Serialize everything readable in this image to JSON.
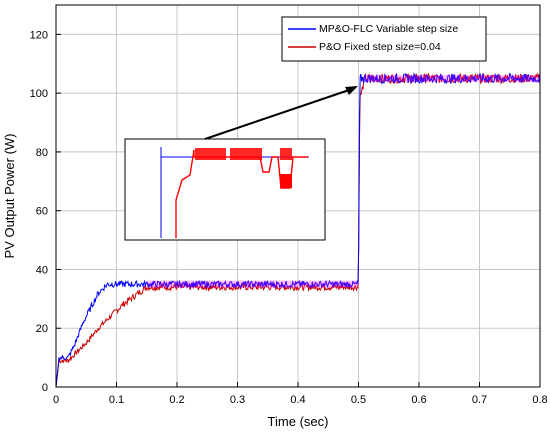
{
  "chart_data": {
    "type": "line",
    "title": "",
    "xlabel": "Time (sec)",
    "ylabel": "PV Output Power (W)",
    "xlim": [
      0,
      0.8
    ],
    "ylim": [
      0,
      130
    ],
    "xticks": [
      0,
      0.1,
      0.2,
      0.3,
      0.4,
      0.5,
      0.6,
      0.7,
      0.8
    ],
    "xtick_labels": [
      "0",
      "0.1",
      "0.2",
      "0.3",
      "0.4",
      "0.5",
      "0.6",
      "0.7",
      "0.8"
    ],
    "yticks": [
      0,
      20,
      40,
      60,
      80,
      100,
      120
    ],
    "ytick_labels": [
      "0",
      "20",
      "40",
      "60",
      "80",
      "100",
      "120"
    ],
    "grid": true,
    "legend_position": "top-right",
    "series": [
      {
        "name": "MP&O-FLC Variable step size",
        "color": "#0000ff",
        "x": [
          0,
          0.005,
          0.02,
          0.03,
          0.045,
          0.06,
          0.07,
          0.085,
          0.095,
          0.1,
          0.15,
          0.2,
          0.3,
          0.4,
          0.5,
          0.502,
          0.505,
          0.51,
          0.6,
          0.7,
          0.8
        ],
        "y": [
          0,
          10,
          10,
          14,
          22,
          28,
          32,
          35,
          35,
          35,
          35,
          35,
          35,
          35,
          35,
          105,
          105,
          105,
          105,
          105,
          105
        ]
      },
      {
        "name": "P&O Fixed step size=0.04",
        "color": "#cc0000",
        "x": [
          0,
          0.005,
          0.02,
          0.03,
          0.05,
          0.07,
          0.09,
          0.11,
          0.13,
          0.15,
          0.2,
          0.3,
          0.4,
          0.5,
          0.502,
          0.505,
          0.51,
          0.6,
          0.7,
          0.8
        ],
        "y": [
          0,
          9,
          9,
          11,
          15,
          20,
          24,
          28,
          31,
          34,
          34,
          34,
          34,
          34,
          99,
          100,
          105,
          105,
          105,
          105
        ]
      }
    ],
    "inset": {
      "series_colors": [
        "#0000ff",
        "#ff0000"
      ]
    }
  }
}
